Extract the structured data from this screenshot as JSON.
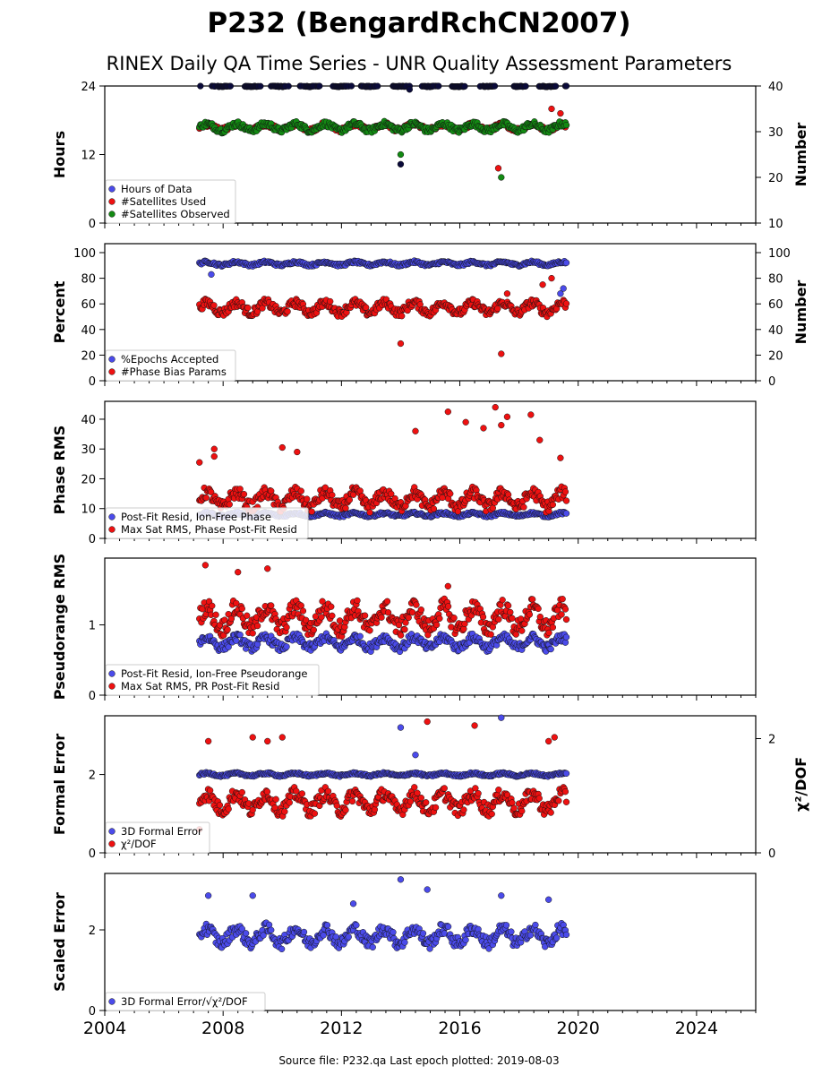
{
  "title": "P232 (BengardRchCN2007)",
  "subtitle": "RINEX Daily QA Time Series - UNR Quality Assessment Parameters",
  "footer": "Source file: P232.qa Last epoch plotted: 2019-08-03",
  "colors": {
    "blue": "#4b4bea",
    "red": "#ee1111",
    "green": "#138a13",
    "navy": "#0a0a3a"
  },
  "x_axis": {
    "ticks": [
      "2004",
      "2008",
      "2012",
      "2016",
      "2020",
      "2024"
    ],
    "range": [
      2004,
      2026
    ]
  },
  "chart_data": [
    {
      "type": "scatter",
      "ylabel": "Hours",
      "ylabel2": "Number",
      "ylim": [
        0,
        24
      ],
      "yticks": [
        "0",
        "12",
        "24"
      ],
      "ylim2": [
        10,
        40
      ],
      "yticks2": [
        "10",
        "20",
        "30",
        "40"
      ],
      "legend": [
        "Hours of Data",
        "#Satellites Used",
        "#Satellites Observed"
      ],
      "series": [
        {
          "name": "Hours of Data",
          "x_range": [
            2007.2,
            2019.6
          ],
          "value": 24.0,
          "spread": 0.15,
          "outliers": [
            [
              2014.3,
              23.4
            ],
            [
              2014.0,
              10.3
            ]
          ]
        },
        {
          "name": "#Satellites Used",
          "x_range": [
            2007.2,
            2019.6
          ],
          "value": 31.0,
          "spread": 1.0,
          "outliers": [
            [
              2019.1,
              35.0
            ],
            [
              2019.4,
              34.0
            ],
            [
              2017.4,
              31.5
            ],
            [
              2017.3,
              22.0
            ]
          ]
        },
        {
          "name": "#Satellites Observed",
          "x_range": [
            2007.2,
            2019.6
          ],
          "value": 31.0,
          "spread": 1.2,
          "outliers": [
            [
              2014.0,
              25.0
            ],
            [
              2017.4,
              20.0
            ]
          ]
        }
      ]
    },
    {
      "type": "scatter",
      "ylabel": "Percent",
      "ylabel2": "Number",
      "ylim": [
        0,
        107
      ],
      "yticks": [
        "0",
        "20",
        "40",
        "60",
        "80",
        "100"
      ],
      "ylim2": [
        0,
        107
      ],
      "yticks2": [
        "0",
        "20",
        "40",
        "60",
        "80",
        "100"
      ],
      "legend": [
        "%Epochs Accepted",
        "#Phase Bias Params"
      ],
      "series": [
        {
          "name": "%Epochs Accepted",
          "x_range": [
            2007.2,
            2019.6
          ],
          "value": 91.5,
          "spread": 2.0,
          "outliers": [
            [
              2007.6,
              83
            ],
            [
              2019.4,
              68
            ],
            [
              2019.5,
              72
            ]
          ]
        },
        {
          "name": "#Phase Bias Params",
          "x_range": [
            2007.2,
            2019.6
          ],
          "value": 57.0,
          "spread": 6.5,
          "outliers": [
            [
              2014.0,
              29
            ],
            [
              2017.4,
              21
            ],
            [
              2018.8,
              75
            ],
            [
              2019.1,
              80
            ],
            [
              2017.6,
              68
            ]
          ]
        }
      ]
    },
    {
      "type": "scatter",
      "ylabel": "Phase RMS",
      "ylim": [
        0,
        46
      ],
      "yticks": [
        "0",
        "10",
        "20",
        "30",
        "40"
      ],
      "legend": [
        "Post-Fit Resid, Ion-Free Phase",
        "Max Sat RMS, Phase Post-Fit Resid"
      ],
      "series": [
        {
          "name": "Post-Fit Resid, Ion-Free Phase",
          "x_range": [
            2007.2,
            2019.6
          ],
          "value": 8.0,
          "spread": 0.8,
          "outliers": []
        },
        {
          "name": "Max Sat RMS, Phase Post-Fit Resid",
          "x_range": [
            2007.2,
            2019.6
          ],
          "value": 13.0,
          "spread": 4.0,
          "outliers": [
            [
              2007.2,
              25.5
            ],
            [
              2007.7,
              30
            ],
            [
              2007.7,
              27.5
            ],
            [
              2010.0,
              30.5
            ],
            [
              2010.5,
              29
            ],
            [
              2014.5,
              36
            ],
            [
              2015.6,
              42.5
            ],
            [
              2016.2,
              39
            ],
            [
              2016.8,
              37
            ],
            [
              2017.2,
              44
            ],
            [
              2017.4,
              38
            ],
            [
              2017.6,
              40.8
            ],
            [
              2018.4,
              41.5
            ],
            [
              2018.7,
              33
            ],
            [
              2019.4,
              27
            ]
          ]
        }
      ]
    },
    {
      "type": "scatter",
      "ylabel": "Pseudorange RMS",
      "ylim": [
        0,
        1.95
      ],
      "yticks": [
        "0",
        "1"
      ],
      "legend": [
        "Post-Fit Resid, Ion-Free Pseudorange",
        "Max Sat RMS, PR Post-Fit Resid"
      ],
      "series": [
        {
          "name": "Post-Fit Resid, Ion-Free Pseudorange",
          "x_range": [
            2007.2,
            2019.6
          ],
          "value": 0.75,
          "spread": 0.12,
          "outliers": []
        },
        {
          "name": "Max Sat RMS, PR Post-Fit Resid",
          "x_range": [
            2007.2,
            2019.6
          ],
          "value": 1.1,
          "spread": 0.25,
          "outliers": [
            [
              2007.4,
              1.85
            ],
            [
              2009.5,
              1.8
            ],
            [
              2015.6,
              1.55
            ],
            [
              2008.5,
              1.75
            ]
          ]
        }
      ]
    },
    {
      "type": "scatter",
      "ylabel": "Formal Error",
      "ylabel2": "χ²/DOF",
      "ylim": [
        0,
        3.5
      ],
      "yticks": [
        "0",
        "2"
      ],
      "ylim2": [
        0,
        2.4
      ],
      "yticks2": [
        "0",
        "2"
      ],
      "legend": [
        "3D Formal Error",
        "χ²/DOF"
      ],
      "series": [
        {
          "name": "3D Formal Error",
          "x_range": [
            2007.2,
            2019.6
          ],
          "value": 2.0,
          "spread": 0.05,
          "outliers": [
            [
              2014.0,
              3.2
            ],
            [
              2017.4,
              3.45
            ],
            [
              2014.5,
              2.5
            ]
          ]
        },
        {
          "name": "χ²/DOF",
          "x_range": [
            2007.2,
            2019.6
          ],
          "value": 1.3,
          "spread": 0.35,
          "outliers": [
            [
              2007.5,
              2.85
            ],
            [
              2009.0,
              2.95
            ],
            [
              2009.5,
              2.85
            ],
            [
              2010.0,
              2.95
            ],
            [
              2014.9,
              3.35
            ],
            [
              2016.5,
              3.25
            ],
            [
              2019.0,
              2.85
            ],
            [
              2019.2,
              2.95
            ],
            [
              2007.2,
              0.6
            ]
          ]
        }
      ]
    },
    {
      "type": "scatter",
      "ylabel": "Scaled Error",
      "ylim": [
        0,
        3.4
      ],
      "yticks": [
        "0",
        "2"
      ],
      "legend": [
        "3D Formal Error/√χ²/DOF"
      ],
      "series": [
        {
          "name": "3D Formal Error/√χ²/DOF",
          "x_range": [
            2007.2,
            2019.6
          ],
          "value": 1.85,
          "spread": 0.3,
          "outliers": [
            [
              2014.0,
              3.25
            ],
            [
              2014.9,
              3.0
            ],
            [
              2007.5,
              2.85
            ],
            [
              2009.0,
              2.85
            ],
            [
              2012.4,
              2.65
            ],
            [
              2017.4,
              2.85
            ],
            [
              2019.0,
              2.75
            ]
          ]
        }
      ]
    }
  ]
}
